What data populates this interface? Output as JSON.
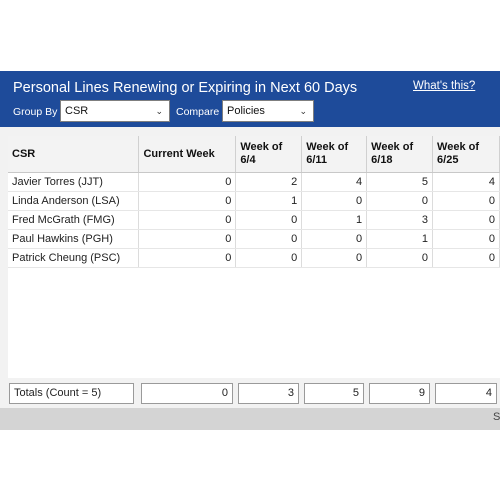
{
  "header": {
    "title": "Personal Lines Renewing or Expiring in Next 60 Days",
    "help_link": "What's this?"
  },
  "controls": {
    "group_by_label": "Group By",
    "group_by_value": "CSR",
    "compare_label": "Compare",
    "compare_value": "Policies"
  },
  "table": {
    "columns": [
      {
        "line1": "CSR",
        "line2": ""
      },
      {
        "line1": "Current Week",
        "line2": ""
      },
      {
        "line1": "Week of",
        "line2": "6/4"
      },
      {
        "line1": "Week of",
        "line2": "6/11"
      },
      {
        "line1": "Week of",
        "line2": "6/18"
      },
      {
        "line1": "Week of",
        "line2": "6/25"
      }
    ],
    "rows": [
      {
        "csr": "Javier Torres (JJT)",
        "values": [
          "0",
          "2",
          "4",
          "5",
          "4"
        ]
      },
      {
        "csr": "Linda Anderson (LSA)",
        "values": [
          "0",
          "1",
          "0",
          "0",
          "0"
        ]
      },
      {
        "csr": "Fred McGrath (FMG)",
        "values": [
          "0",
          "0",
          "1",
          "3",
          "0"
        ]
      },
      {
        "csr": "Paul Hawkins (PGH)",
        "values": [
          "0",
          "0",
          "0",
          "1",
          "0"
        ]
      },
      {
        "csr": "Patrick Cheung (PSC)",
        "values": [
          "0",
          "0",
          "0",
          "0",
          "0"
        ]
      }
    ]
  },
  "totals": {
    "label": "Totals (Count = 5)",
    "values": [
      "0",
      "3",
      "5",
      "9",
      "4"
    ]
  },
  "footer": {
    "text": "S"
  },
  "colors": {
    "header_bg": "#1e4b9a",
    "header_text": "#ffffff"
  }
}
